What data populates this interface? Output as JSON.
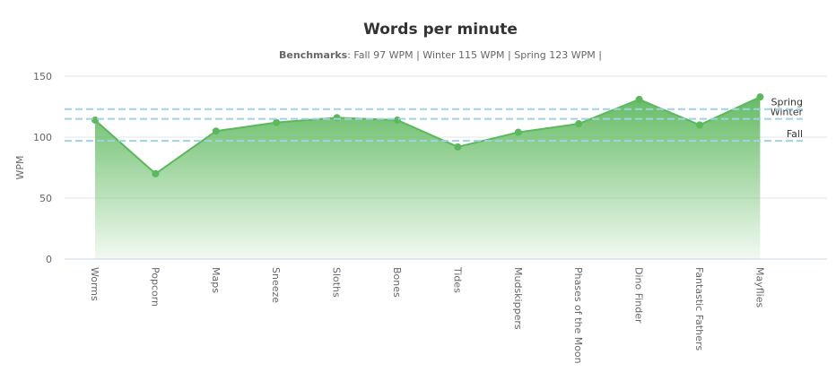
{
  "chart_data": {
    "type": "area",
    "title": "Words per minute",
    "subtitle_label": "Benchmarks",
    "subtitle_text": ": Fall 97 WPM | Winter 115 WPM | Spring 123 WPM |",
    "y_label": "WPM",
    "categories": [
      "Worms",
      "Popcorn",
      "Maps",
      "Sneeze",
      "Sloths",
      "Bones",
      "Tides",
      "Mudskippers",
      "Phases of the Moon",
      "Dino Finder",
      "Fantastic Fathers",
      "Mayflies"
    ],
    "values": [
      114,
      70,
      105,
      112,
      116,
      114,
      92,
      104,
      111,
      131,
      110,
      133
    ],
    "color": "#5cb85c",
    "ylim": [
      0,
      150
    ],
    "yticks": [
      0,
      50,
      100,
      150
    ],
    "grid": true,
    "plot_lines": [
      {
        "name": "Fall",
        "value": 97
      },
      {
        "name": "Winter",
        "value": 115
      },
      {
        "name": "Spring",
        "value": 123
      }
    ],
    "plot_line_color": "#9fd3e0"
  }
}
